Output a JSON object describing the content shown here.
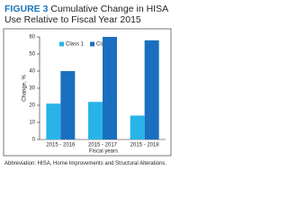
{
  "chart_data": {
    "type": "bar",
    "figure_label": "FIGURE 3",
    "title": "Cumulative Change in HISA Use Relative to Fiscal Year 2015",
    "ylabel": "Change, %",
    "xlabel": "Fiscal years",
    "categories": [
      "2015 - 2016",
      "2015 - 2017",
      "2015 - 2018"
    ],
    "series": [
      {
        "name": "Class 1",
        "color": "#29b4e8",
        "values": [
          21,
          22,
          14
        ]
      },
      {
        "name": "Class 2",
        "color": "#1b6fc0",
        "values": [
          40,
          60,
          58
        ]
      }
    ],
    "ylim": [
      0,
      60
    ],
    "yticks": [
      0,
      10,
      20,
      30,
      40,
      50,
      60
    ],
    "grid": false,
    "note": "Abbreviation: HISA, Home Improvements and Structural Alterations."
  }
}
